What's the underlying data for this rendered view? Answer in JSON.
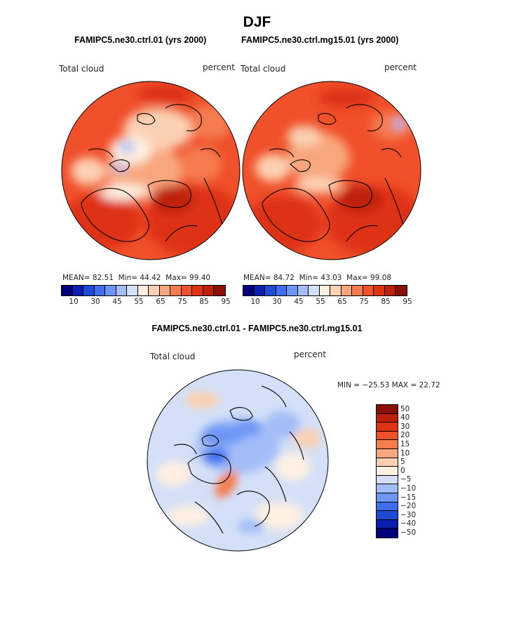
{
  "chart_data": {
    "type": "heatmap",
    "title": "DJF",
    "panels": [
      {
        "id": "ctrl",
        "title": "FAMIPC5.ne30.ctrl.01 (yrs 2000)",
        "variable": "Total cloud",
        "units": "percent",
        "stats": {
          "mean_label": "MEAN=",
          "mean": "82.51",
          "min_label": "Min=",
          "min": "44.42",
          "max_label": "Max=",
          "max": "99.40"
        },
        "colorbar_ticks": [
          "10",
          "30",
          "45",
          "55",
          "65",
          "75",
          "85",
          "95"
        ]
      },
      {
        "id": "mg15",
        "title": "FAMIPC5.ne30.ctrl.mg15.01 (yrs 2000)",
        "variable": "Total cloud",
        "units": "percent",
        "stats": {
          "mean_label": "MEAN=",
          "mean": "84.72",
          "min_label": "Min=",
          "min": "43.03",
          "max_label": "Max=",
          "max": "99.08"
        },
        "colorbar_ticks": [
          "10",
          "30",
          "45",
          "55",
          "65",
          "75",
          "85",
          "95"
        ]
      },
      {
        "id": "diff",
        "title": "FAMIPC5.ne30.ctrl.01 - FAMIPC5.ne30.ctrl.mg15.01",
        "variable": "Total cloud",
        "units": "percent",
        "stats_text": "MIN = −25.53 MAX =  22.72",
        "colorbar_ticks": [
          "50",
          "40",
          "30",
          "20",
          "15",
          "10",
          "5",
          "0",
          "−5",
          "−10",
          "−15",
          "−20",
          "−30",
          "−40",
          "−50"
        ]
      }
    ]
  },
  "colors": {
    "abs_scale": [
      "#00007d",
      "#0a1fae",
      "#1f4ad6",
      "#3e6ff0",
      "#6e96f7",
      "#a3bdf7",
      "#d3e0f7",
      "#fff0e2",
      "#fcd0b2",
      "#f8a77d",
      "#f57c4f",
      "#f0502a",
      "#de3213",
      "#be200b",
      "#8a0f05"
    ],
    "diff_scale": [
      "#8a0f05",
      "#be200b",
      "#de3213",
      "#f0502a",
      "#f57c4f",
      "#f8a77d",
      "#fcd0b2",
      "#fff0e2",
      "#d3e0f7",
      "#a3bdf7",
      "#6e96f7",
      "#3e6ff0",
      "#1f4ad6",
      "#0a1fae",
      "#00007d"
    ]
  }
}
